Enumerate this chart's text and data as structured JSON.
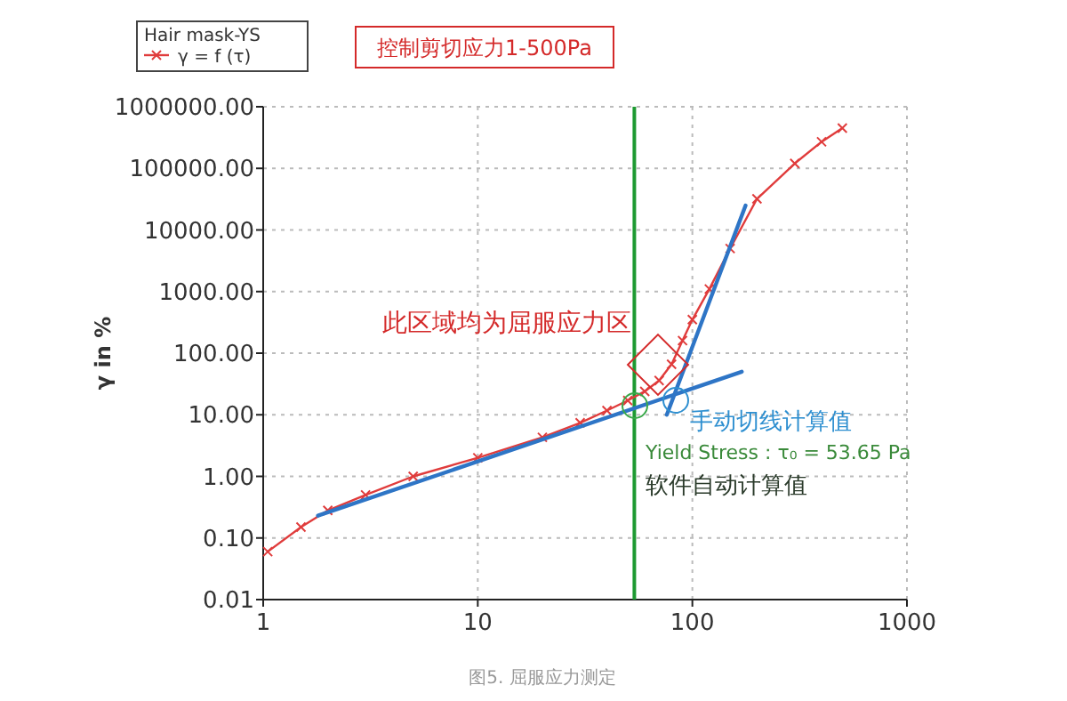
{
  "chart_data": {
    "type": "line",
    "title": "控制剪切应力1-500Pa",
    "ylabel": "γ in %",
    "legend_title": "Hair mask-YS",
    "legend": "top left",
    "grid": true,
    "log": "xy",
    "xlim": [
      1,
      1000
    ],
    "xticks": [
      1,
      10,
      100,
      1000
    ],
    "ylim": [
      0.01,
      1000000
    ],
    "yticks": [
      {
        "value": 0.01,
        "label": "0.01"
      },
      {
        "value": 0.1,
        "label": "0.10"
      },
      {
        "value": 1,
        "label": "1.00"
      },
      {
        "value": 10,
        "label": "10.00"
      },
      {
        "value": 100,
        "label": "100.00"
      },
      {
        "value": 1000,
        "label": "1000.00"
      },
      {
        "value": 10000,
        "label": "10000.00"
      },
      {
        "value": 100000,
        "label": "100000.00"
      },
      {
        "value": 1000000,
        "label": "1000000.00"
      }
    ],
    "series": [
      {
        "name": "γ = f (τ)",
        "color": "#e03c3c",
        "marker": "cross",
        "x": [
          1.05,
          1.5,
          2,
          3,
          5,
          10,
          20,
          30,
          40,
          50,
          60,
          70,
          80,
          90,
          100,
          120,
          150,
          200,
          300,
          400,
          500
        ],
        "values": [
          0.06,
          0.15,
          0.28,
          0.5,
          1,
          2,
          4.3,
          7.4,
          11.7,
          17,
          24,
          36,
          66,
          160,
          350,
          1100,
          5000,
          32000,
          120000,
          270000,
          450000
        ]
      },
      {
        "color": "#2e75c6",
        "marker": "none",
        "x": [
          1.8,
          170
        ],
        "values": [
          0.23,
          50
        ]
      },
      {
        "color": "#2e75c6",
        "marker": "none",
        "x": [
          76,
          177
        ],
        "values": [
          10,
          25000
        ]
      }
    ],
    "ref_lines": [
      {
        "axis": "x",
        "value": 53.65,
        "color": "#1e9a32"
      }
    ],
    "annotations": [
      "此区域均为屈服应力区",
      "手动切线计算值",
      "Yield Stress : τ₀ = 53.65 Pa",
      "软件自动计算值",
      "图5. 屈服应力测定"
    ]
  }
}
